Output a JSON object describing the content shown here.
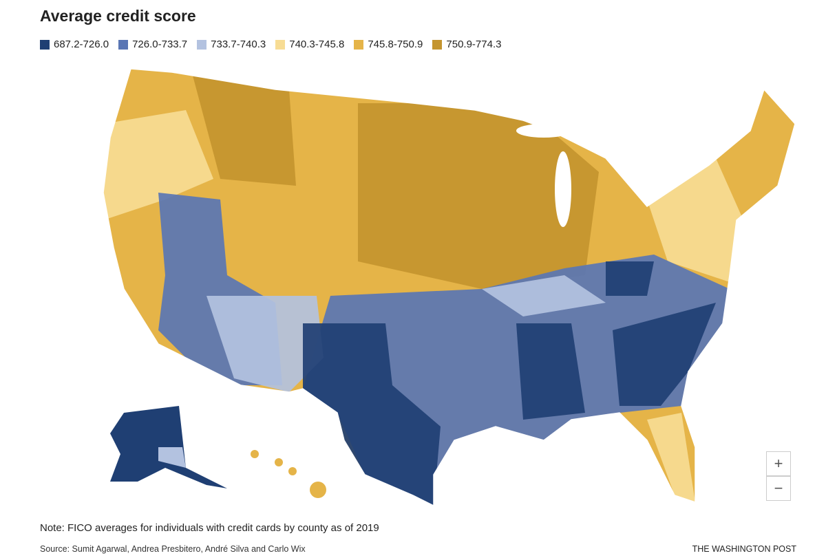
{
  "title": "Average credit score",
  "legend": [
    {
      "label": "687.2-726.0",
      "color": "#1f3f73"
    },
    {
      "label": "726.0-733.7",
      "color": "#5a76b4"
    },
    {
      "label": "733.7-740.3",
      "color": "#b3c2e0"
    },
    {
      "label": "740.3-745.8",
      "color": "#f7dc94"
    },
    {
      "label": "745.8-750.9",
      "color": "#e5b448"
    },
    {
      "label": "750.9-774.3",
      "color": "#c4952f"
    }
  ],
  "note": "Note: FICO averages for individuals with credit cards by county as of 2019",
  "source": "Source: Sumit Agarwal, Andrea Presbitero, André Silva and Carlo Wix",
  "credit": "THE WASHINGTON POST",
  "zoom": {
    "in": "+",
    "out": "−"
  }
}
